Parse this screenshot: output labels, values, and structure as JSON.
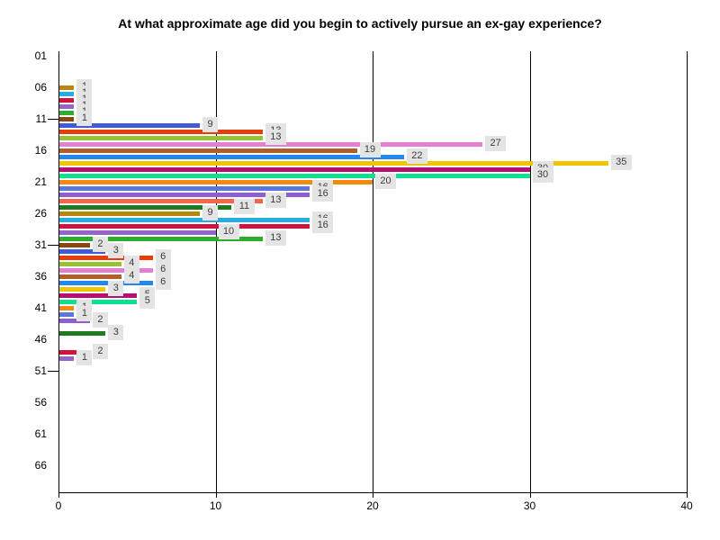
{
  "chart_data": {
    "type": "bar",
    "orientation": "horizontal",
    "title": "At what approximate age did you begin to actively pursue an ex-gay experience?",
    "x_axis": {
      "range": [
        0,
        40
      ],
      "ticks": [
        0,
        10,
        20,
        30,
        40
      ],
      "gridlines": [
        10,
        20,
        30,
        40
      ]
    },
    "y_axis": {
      "labels": [
        "01",
        "06",
        "11",
        "16",
        "21",
        "26",
        "31",
        "36",
        "41",
        "46",
        "51",
        "56",
        "61",
        "66"
      ],
      "label_values": [
        1,
        6,
        11,
        16,
        21,
        26,
        31,
        36,
        41,
        46,
        51,
        56,
        61,
        66
      ],
      "tick_marks": [
        11,
        31,
        51
      ],
      "range": [
        1,
        70
      ]
    },
    "points": [
      {
        "age": 6,
        "value": 1,
        "color": "#B8860B"
      },
      {
        "age": 7,
        "value": 1,
        "color": "#29ABE2"
      },
      {
        "age": 8,
        "value": 1,
        "color": "#D2123E"
      },
      {
        "age": 9,
        "value": 1,
        "color": "#9663C8"
      },
      {
        "age": 10,
        "value": 1,
        "color": "#2EAC2E"
      },
      {
        "age": 11,
        "value": 1,
        "color": "#8B4513"
      },
      {
        "age": 12,
        "value": 9,
        "color": "#3F5BD6"
      },
      {
        "age": 13,
        "value": 13,
        "color": "#E63E0B"
      },
      {
        "age": 14,
        "value": 13,
        "color": "#97C235"
      },
      {
        "age": 15,
        "value": 27,
        "color": "#E47FD3"
      },
      {
        "age": 16,
        "value": 19,
        "color": "#B05F2C"
      },
      {
        "age": 17,
        "value": 22,
        "color": "#2288EE"
      },
      {
        "age": 18,
        "value": 35,
        "color": "#EFC500"
      },
      {
        "age": 19,
        "value": 30,
        "color": "#BA0D74"
      },
      {
        "age": 20,
        "value": 30,
        "color": "#0CE093"
      },
      {
        "age": 21,
        "value": 20,
        "color": "#F28A10"
      },
      {
        "age": 22,
        "value": 16,
        "color": "#5A78DA"
      },
      {
        "age": 23,
        "value": 16,
        "color": "#8E5FD0"
      },
      {
        "age": 24,
        "value": 13,
        "color": "#F2674B"
      },
      {
        "age": 25,
        "value": 11,
        "color": "#1E7A1E"
      },
      {
        "age": 26,
        "value": 9,
        "color": "#B8860B"
      },
      {
        "age": 27,
        "value": 16,
        "color": "#29ABE2"
      },
      {
        "age": 28,
        "value": 16,
        "color": "#D2123E"
      },
      {
        "age": 29,
        "value": 10,
        "color": "#9663C8"
      },
      {
        "age": 30,
        "value": 13,
        "color": "#2EAC2E"
      },
      {
        "age": 31,
        "value": 2,
        "color": "#8B4513"
      },
      {
        "age": 32,
        "value": 3,
        "color": "#3F5BD6"
      },
      {
        "age": 33,
        "value": 6,
        "color": "#E63E0B"
      },
      {
        "age": 34,
        "value": 4,
        "color": "#97C235"
      },
      {
        "age": 35,
        "value": 6,
        "color": "#E47FD3"
      },
      {
        "age": 36,
        "value": 4,
        "color": "#B05F2C"
      },
      {
        "age": 37,
        "value": 6,
        "color": "#2288EE"
      },
      {
        "age": 38,
        "value": 3,
        "color": "#EFC500"
      },
      {
        "age": 39,
        "value": 5,
        "color": "#BA0D74"
      },
      {
        "age": 40,
        "value": 5,
        "color": "#0CE093"
      },
      {
        "age": 41,
        "value": 1,
        "color": "#F28A10"
      },
      {
        "age": 42,
        "value": 1,
        "color": "#5A78DA"
      },
      {
        "age": 43,
        "value": 2,
        "color": "#8E5FD0"
      },
      {
        "age": 45,
        "value": 3,
        "color": "#1E7A1E"
      },
      {
        "age": 48,
        "value": 2,
        "color": "#D2123E"
      },
      {
        "age": 49,
        "value": 1,
        "color": "#9663C8"
      }
    ],
    "colors": {
      "background": "#FFFFFF",
      "axis": "#000000",
      "gridline": "#000000",
      "label_box_bg": "#E4E4E4",
      "label_text": "#3C3C3C",
      "title_text": "#000000"
    },
    "legend": "none",
    "grid": "vertical-only"
  }
}
